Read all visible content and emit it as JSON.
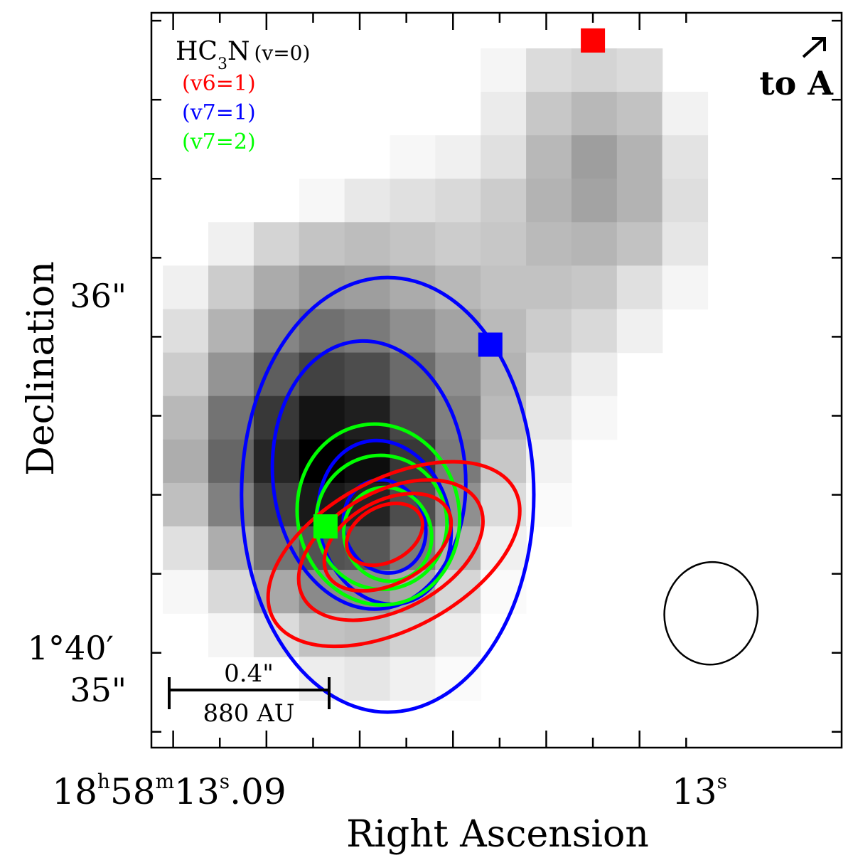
{
  "chart_data": {
    "type": "heatmap",
    "title": "",
    "xlabel": "Right  Ascension",
    "ylabel": "Declination",
    "x_ticks": [
      {
        "label_parts": [
          "18",
          "h",
          "58",
          "m",
          "13",
          "s",
          ".09"
        ],
        "value": 13.09
      },
      {
        "label_parts": [
          "13",
          "s"
        ],
        "value": 13.0
      }
    ],
    "y_ticks": [
      {
        "label": "36\"",
        "value": 36.0
      },
      {
        "label": "1°40′",
        "label2": "35\"",
        "value": 35.0
      }
    ],
    "xlim": [
      13.0935,
      12.9825
    ],
    "ylim": [
      34.86,
      36.72
    ],
    "grid": false,
    "legend": {
      "placement": "top-left",
      "entries": [
        {
          "molecule": "HC",
          "subscript": "3",
          "suffix": "N",
          "state": "(v=0)",
          "color": "#000000"
        },
        {
          "label": "(v6=1)",
          "color": "#ff0000"
        },
        {
          "label": "(v7=1)",
          "color": "#0000ff"
        },
        {
          "label": "(v7=2)",
          "color": "#00ff00"
        }
      ]
    },
    "annotations": {
      "direction_label": "to A",
      "scalebar": {
        "angular": "0.4\"",
        "physical": "880 AU"
      }
    },
    "markers": [
      {
        "series": "(v6=1)",
        "color": "#ff0000",
        "ra": 13.0225,
        "dec": 36.65
      },
      {
        "series": "(v7=1)",
        "color": "#0000ff",
        "ra": 13.039,
        "dec": 35.88
      },
      {
        "series": "(v7=2)",
        "color": "#00ff00",
        "ra": 13.0655,
        "dec": 35.42
      }
    ],
    "heatmap": {
      "series": "HC3N (v=0)",
      "colormap": "white-to-black",
      "x_centers": [
        13.088,
        13.0807,
        13.0734,
        13.0661,
        13.0588,
        13.0515,
        13.0442,
        13.0369,
        13.0296,
        13.0223,
        13.015,
        13.0077
      ],
      "y_centers": [
        36.575,
        36.465,
        36.355,
        36.245,
        36.135,
        36.025,
        35.915,
        35.805,
        35.695,
        35.585,
        35.475,
        35.365,
        35.255,
        35.145,
        35.035
      ],
      "values": [
        [
          0,
          0,
          0,
          0,
          0,
          0,
          0,
          0.04,
          0.14,
          0.17,
          0.14,
          0
        ],
        [
          0,
          0,
          0,
          0,
          0,
          0,
          0,
          0.08,
          0.22,
          0.28,
          0.24,
          0.05
        ],
        [
          0,
          0,
          0,
          0,
          0,
          0.03,
          0.06,
          0.12,
          0.28,
          0.38,
          0.3,
          0.11
        ],
        [
          0,
          0,
          0,
          0.03,
          0.09,
          0.12,
          0.15,
          0.2,
          0.3,
          0.36,
          0.3,
          0.13
        ],
        [
          0,
          0.06,
          0.17,
          0.23,
          0.26,
          0.23,
          0.2,
          0.22,
          0.27,
          0.29,
          0.24,
          0.1
        ],
        [
          0.06,
          0.2,
          0.33,
          0.4,
          0.38,
          0.33,
          0.28,
          0.24,
          0.24,
          0.22,
          0.12,
          0.04
        ],
        [
          0.13,
          0.3,
          0.48,
          0.56,
          0.52,
          0.44,
          0.36,
          0.27,
          0.2,
          0.15,
          0.06,
          0
        ],
        [
          0.2,
          0.42,
          0.63,
          0.74,
          0.7,
          0.58,
          0.44,
          0.3,
          0.15,
          0.07,
          0,
          0
        ],
        [
          0.28,
          0.55,
          0.78,
          0.92,
          0.88,
          0.72,
          0.5,
          0.27,
          0.1,
          0.03,
          0,
          0
        ],
        [
          0.32,
          0.6,
          0.85,
          1.0,
          0.95,
          0.78,
          0.52,
          0.22,
          0.05,
          0,
          0,
          0
        ],
        [
          0.25,
          0.5,
          0.75,
          0.9,
          0.86,
          0.7,
          0.44,
          0.14,
          0.02,
          0,
          0,
          0
        ],
        [
          0.12,
          0.32,
          0.55,
          0.68,
          0.66,
          0.52,
          0.3,
          0.06,
          0,
          0,
          0,
          0
        ],
        [
          0.03,
          0.15,
          0.34,
          0.46,
          0.45,
          0.34,
          0.16,
          0.02,
          0,
          0,
          0,
          0
        ],
        [
          0,
          0.04,
          0.14,
          0.24,
          0.26,
          0.18,
          0.07,
          0,
          0,
          0,
          0,
          0
        ],
        [
          0,
          0,
          0,
          0.07,
          0.1,
          0.06,
          0.02,
          0,
          0,
          0,
          0,
          0
        ]
      ]
    },
    "contours": [
      {
        "series": "(v7=1)",
        "color": "#0000ff",
        "levels": [
          {
            "center": [
              13.0555,
              35.5
            ],
            "radii": [
              0.0235,
              0.55
            ],
            "pa": 0
          },
          {
            "center": [
              13.0585,
              35.55
            ],
            "radii": [
              0.0155,
              0.34
            ],
            "pa": -5
          },
          {
            "center": [
              13.056,
              35.43
            ],
            "radii": [
              0.0105,
              0.21
            ],
            "pa": -15
          },
          {
            "center": [
              13.056,
              35.42
            ],
            "radii": [
              0.0065,
              0.12
            ],
            "pa": -20
          }
        ]
      },
      {
        "series": "(v7=2)",
        "color": "#00ff00",
        "levels": [
          {
            "center": [
              13.057,
              35.45
            ],
            "radii": [
              0.013,
              0.23
            ],
            "pa": -12
          },
          {
            "center": [
              13.0565,
              35.43
            ],
            "radii": [
              0.0105,
              0.17
            ],
            "pa": -15
          },
          {
            "center": [
              13.0555,
              35.4
            ],
            "radii": [
              0.007,
              0.12
            ],
            "pa": -20
          }
        ]
      },
      {
        "series": "(v6=1)",
        "color": "#ff0000",
        "levels": [
          {
            "center": [
              13.0545,
              35.35
            ],
            "radii": [
              0.022,
              0.19
            ],
            "pa": -28
          },
          {
            "center": [
              13.055,
              35.36
            ],
            "radii": [
              0.016,
              0.15
            ],
            "pa": -28
          },
          {
            "center": [
              13.0555,
              35.38
            ],
            "radii": [
              0.011,
              0.105
            ],
            "pa": -28
          },
          {
            "center": [
              13.056,
              35.4
            ],
            "radii": [
              0.0065,
              0.07
            ],
            "pa": -28
          }
        ]
      }
    ],
    "beam": {
      "center": [
        13.0035,
        35.2
      ],
      "radii": [
        0.0075,
        0.13
      ],
      "pa": 8
    }
  }
}
